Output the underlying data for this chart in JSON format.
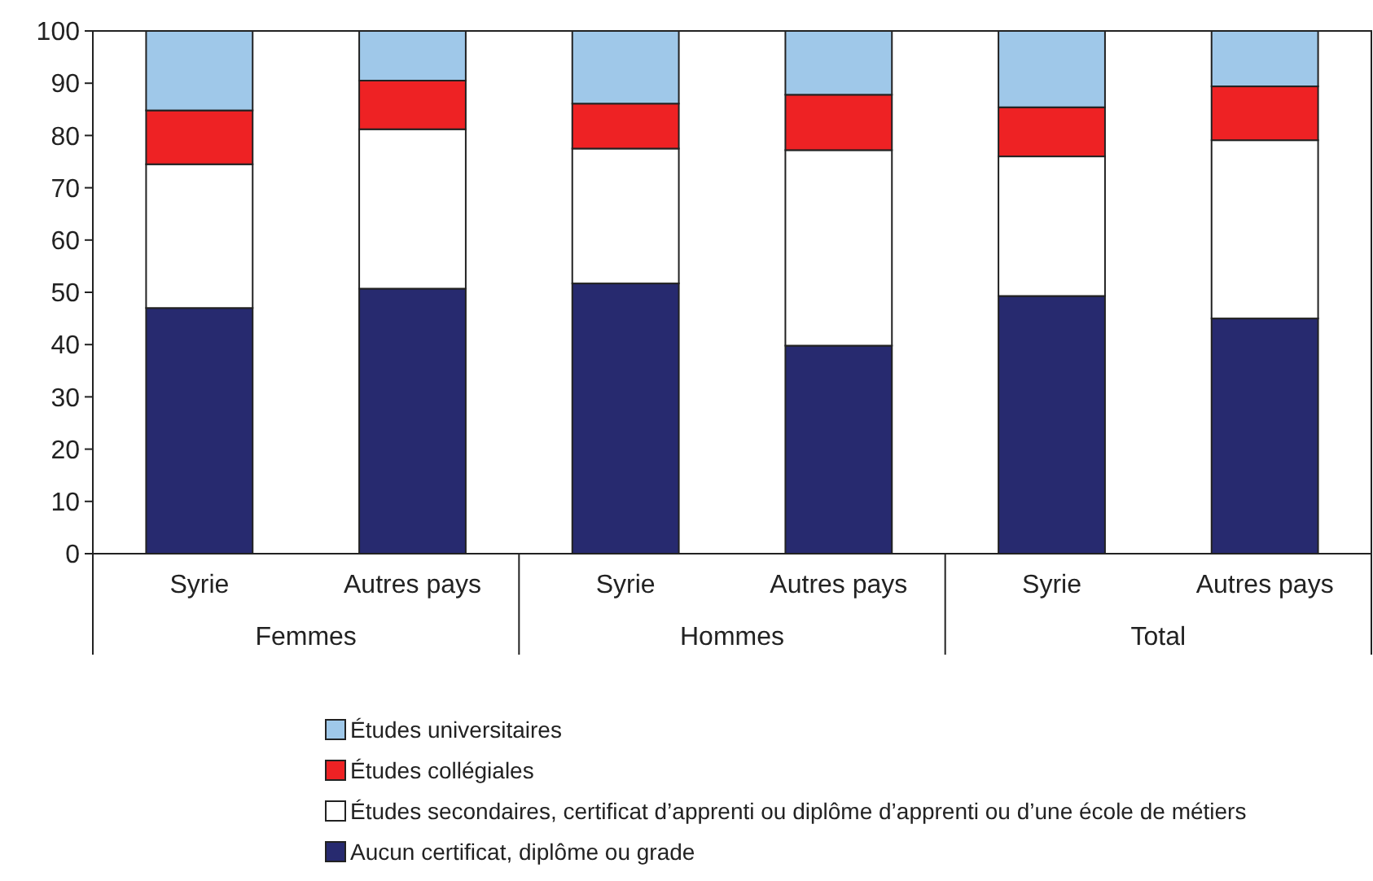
{
  "chart_data": {
    "type": "bar",
    "stacked": true,
    "categories": [
      "Syrie",
      "Autres pays",
      "Syrie",
      "Autres pays",
      "Syrie",
      "Autres pays"
    ],
    "annotations": [
      "Femmes",
      "Hommes",
      "Total"
    ],
    "series": [
      {
        "name": "Aucun certificat, diplôme ou grade",
        "color": "#272a6f",
        "values": [
          47.0,
          50.7,
          51.7,
          39.8,
          49.3,
          45.0
        ]
      },
      {
        "name": "Études secondaires, certificat d’apprenti ou diplôme d’apprenti ou d’une école de métiers",
        "color": "#ffffff",
        "values": [
          27.5,
          30.5,
          25.8,
          37.4,
          26.7,
          34.1
        ]
      },
      {
        "name": "Études collégiales",
        "color": "#ee2224",
        "values": [
          10.3,
          9.3,
          8.6,
          10.6,
          9.4,
          10.3
        ]
      },
      {
        "name": "Études universitaires",
        "color": "#9fc8e9",
        "values": [
          15.2,
          9.5,
          13.9,
          12.2,
          14.6,
          10.6
        ]
      }
    ],
    "ylim": [
      0,
      100
    ],
    "yticks": [
      0,
      10,
      20,
      30,
      40,
      50,
      60,
      70,
      80,
      90,
      100
    ],
    "legend": "bottom"
  }
}
